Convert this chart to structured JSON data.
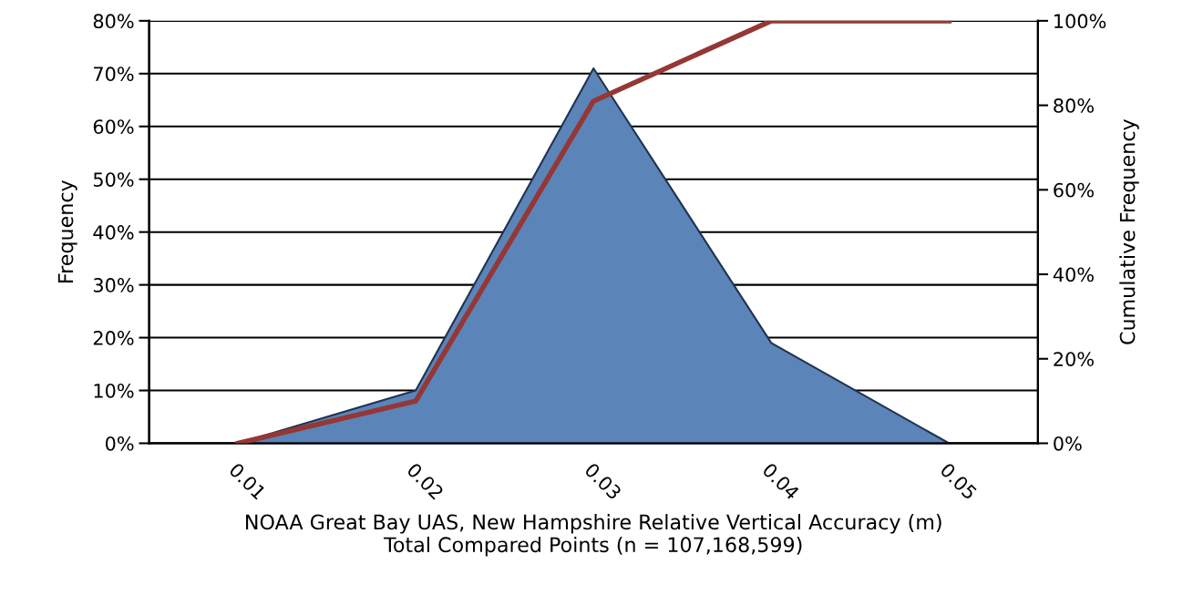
{
  "chart_data": {
    "type": "area",
    "xlabel": "NOAA Great Bay UAS, New Hampshire Relative Vertical Accuracy (m)\nTotal Compared Points (n = 107,168,599)",
    "ylabel": "Frequency",
    "y2label": "Cumulative Frequency",
    "categories": [
      "0.01",
      "0.02",
      "0.03",
      "0.04",
      "0.05"
    ],
    "series": [
      {
        "color": "#5b84b8",
        "values": [
          0,
          10,
          71,
          19,
          0
        ]
      },
      {
        "type": "line",
        "axis": "y2",
        "color": "#953735",
        "values": [
          0,
          10,
          81,
          100,
          100
        ]
      }
    ],
    "ylim": [
      0,
      80
    ],
    "yticks": [
      {
        "value": 0,
        "label": "0%"
      },
      {
        "value": 10,
        "label": "10%"
      },
      {
        "value": 20,
        "label": "20%"
      },
      {
        "value": 30,
        "label": "30%"
      },
      {
        "value": 40,
        "label": "40%"
      },
      {
        "value": 50,
        "label": "50%"
      },
      {
        "value": 60,
        "label": "60%"
      },
      {
        "value": 70,
        "label": "70%"
      },
      {
        "value": 80,
        "label": "80%"
      }
    ],
    "y2lim": [
      0,
      100
    ],
    "y2ticks": [
      {
        "value": 0,
        "label": "0%"
      },
      {
        "value": 20,
        "label": "20%"
      },
      {
        "value": 40,
        "label": "40%"
      },
      {
        "value": 60,
        "label": "60%"
      },
      {
        "value": 80,
        "label": "80%"
      },
      {
        "value": 100,
        "label": "100%"
      }
    ],
    "grid": "y",
    "legend": false
  }
}
